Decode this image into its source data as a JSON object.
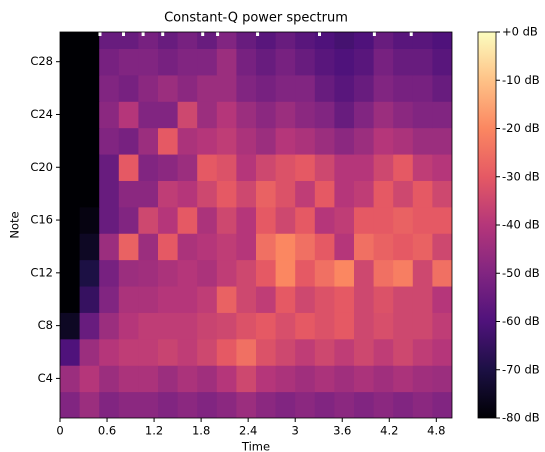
{
  "chart_data": {
    "type": "heatmap",
    "title": "Constant-Q power spectrum",
    "x_label": "Time",
    "y_label": "Note",
    "xlim": [
      0,
      5.0
    ],
    "ylim": [
      1,
      30.25
    ],
    "xticks": [
      0,
      0.6,
      1.2,
      1.8,
      2.4,
      3,
      3.6,
      4.2,
      4.8
    ],
    "yticks": [
      {
        "value": 4,
        "label": "C4"
      },
      {
        "value": 8,
        "label": "C8"
      },
      {
        "value": 12,
        "label": "C12"
      },
      {
        "value": 16,
        "label": "C16"
      },
      {
        "value": 20,
        "label": "C20"
      },
      {
        "value": 24,
        "label": "C24"
      },
      {
        "value": 28,
        "label": "C28"
      }
    ],
    "x_bins": [
      0,
      0.25,
      0.5,
      0.75,
      1.0,
      1.25,
      1.5,
      1.75,
      2.0,
      2.25,
      2.5,
      2.75,
      3.0,
      3.25,
      3.5,
      3.75,
      4.0,
      4.25,
      4.5,
      4.75,
      5.0
    ],
    "y_bins": [
      1,
      3,
      5,
      7,
      9,
      11,
      13,
      15,
      17,
      19,
      21,
      23,
      25,
      27,
      29,
      30.25
    ],
    "values": [
      [
        -50,
        -45,
        -50,
        -48,
        -48,
        -50,
        -48,
        -50,
        -48,
        -45,
        -48,
        -50,
        -48,
        -50,
        -48,
        -50,
        -48,
        -50,
        -48,
        -50
      ],
      [
        -45,
        -40,
        -45,
        -42,
        -42,
        -45,
        -42,
        -44,
        -40,
        -35,
        -40,
        -42,
        -44,
        -42,
        -44,
        -42,
        -44,
        -42,
        -44,
        -45
      ],
      [
        -60,
        -45,
        -40,
        -38,
        -38,
        -36,
        -38,
        -35,
        -30,
        -25,
        -32,
        -35,
        -38,
        -35,
        -38,
        -35,
        -38,
        -35,
        -38,
        -40
      ],
      [
        -75,
        -55,
        -45,
        -40,
        -38,
        -38,
        -38,
        -36,
        -35,
        -32,
        -30,
        -33,
        -30,
        -32,
        -30,
        -35,
        -33,
        -35,
        -35,
        -38
      ],
      [
        -80,
        -65,
        -50,
        -42,
        -42,
        -40,
        -40,
        -38,
        -28,
        -35,
        -38,
        -30,
        -35,
        -32,
        -30,
        -35,
        -32,
        -35,
        -35,
        -40
      ],
      [
        -80,
        -70,
        -52,
        -45,
        -44,
        -42,
        -40,
        -42,
        -38,
        -35,
        -30,
        -20,
        -30,
        -25,
        -20,
        -35,
        -25,
        -22,
        -35,
        -25
      ],
      [
        -80,
        -75,
        -45,
        -28,
        -45,
        -30,
        -42,
        -40,
        -38,
        -40,
        -25,
        -20,
        -25,
        -30,
        -40,
        -25,
        -28,
        -30,
        -28,
        -35
      ],
      [
        -80,
        -78,
        -55,
        -50,
        -35,
        -40,
        -30,
        -42,
        -35,
        -40,
        -30,
        -35,
        -30,
        -40,
        -38,
        -30,
        -30,
        -28,
        -30,
        -30
      ],
      [
        -80,
        -80,
        -55,
        -48,
        -48,
        -38,
        -40,
        -35,
        -30,
        -35,
        -28,
        -32,
        -38,
        -30,
        -40,
        -38,
        -30,
        -35,
        -30,
        -35
      ],
      [
        -80,
        -80,
        -55,
        -30,
        -50,
        -48,
        -45,
        -30,
        -32,
        -40,
        -35,
        -32,
        -30,
        -35,
        -40,
        -40,
        -35,
        -30,
        -38,
        -40
      ],
      [
        -80,
        -80,
        -50,
        -52,
        -45,
        -30,
        -42,
        -40,
        -38,
        -42,
        -45,
        -40,
        -42,
        -45,
        -48,
        -45,
        -40,
        -42,
        -45,
        -45
      ],
      [
        -80,
        -80,
        -48,
        -40,
        -50,
        -50,
        -35,
        -45,
        -40,
        -45,
        -48,
        -45,
        -48,
        -50,
        -55,
        -50,
        -45,
        -48,
        -50,
        -50
      ],
      [
        -80,
        -80,
        -50,
        -52,
        -48,
        -45,
        -48,
        -45,
        -45,
        -50,
        -52,
        -50,
        -50,
        -55,
        -58,
        -55,
        -50,
        -52,
        -52,
        -55
      ],
      [
        -80,
        -80,
        -52,
        -50,
        -50,
        -52,
        -50,
        -50,
        -45,
        -52,
        -55,
        -52,
        -55,
        -58,
        -60,
        -58,
        -52,
        -55,
        -55,
        -58
      ],
      [
        -80,
        -80,
        -55,
        -55,
        -52,
        -55,
        -52,
        -55,
        -50,
        -55,
        -58,
        -55,
        -58,
        -60,
        -62,
        -60,
        -55,
        -58,
        -58,
        -60
      ]
    ],
    "zlim": [
      -80,
      0
    ],
    "zticks": [
      {
        "value": 0,
        "label": "+0 dB"
      },
      {
        "value": -10,
        "label": "-10 dB"
      },
      {
        "value": -20,
        "label": "-20 dB"
      },
      {
        "value": -30,
        "label": "-30 dB"
      },
      {
        "value": -40,
        "label": "-40 dB"
      },
      {
        "value": -50,
        "label": "-50 dB"
      },
      {
        "value": -60,
        "label": "-60 dB"
      },
      {
        "value": -70,
        "label": "-70 dB"
      },
      {
        "value": -80,
        "label": "-80 dB"
      }
    ],
    "colorscale": [
      "#000004",
      "#1c1044",
      "#4f127b",
      "#812581",
      "#b5367a",
      "#e55964",
      "#fb8761",
      "#fec287",
      "#fcfdbf"
    ],
    "markers": [
      0.51,
      0.81,
      1.06,
      1.31,
      1.82,
      2.01,
      2.52,
      3.31,
      4.01,
      4.48
    ]
  }
}
